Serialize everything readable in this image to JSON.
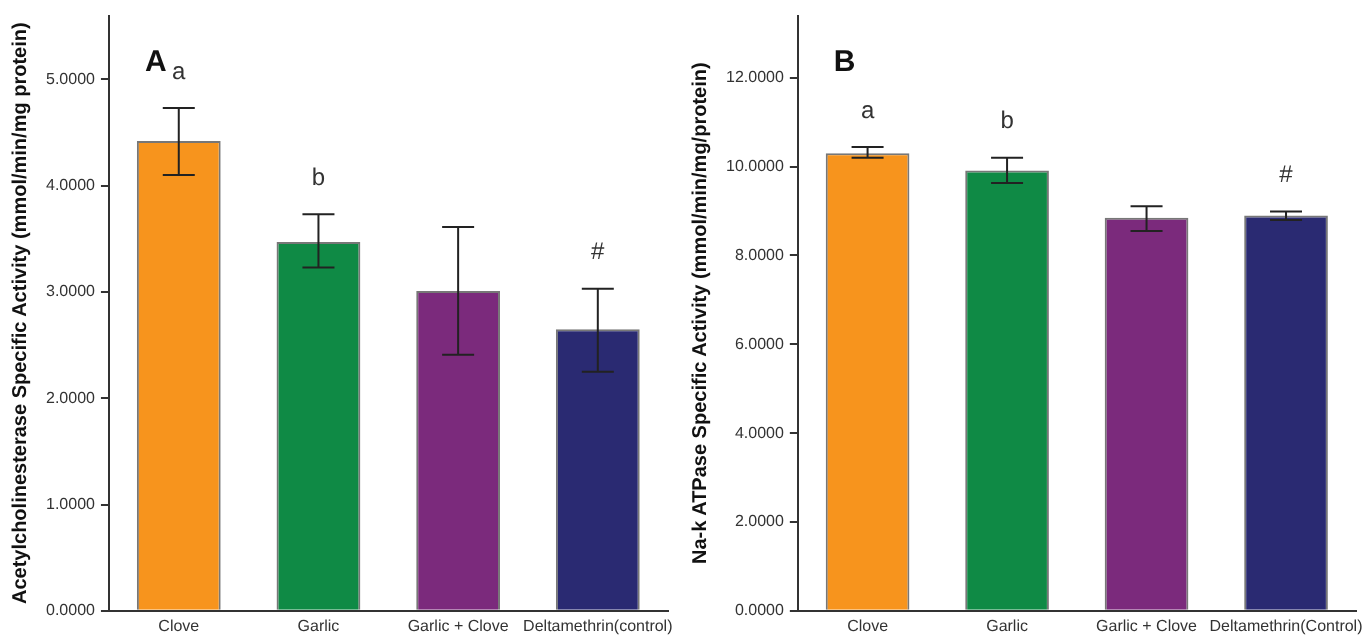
{
  "chart_data": [
    {
      "type": "bar",
      "ylabel": "Acetylcholinesterase Specific Activity (mmol/min/mg protein)",
      "categories": [
        "Clove",
        "Garlic",
        "Garlic + Clove",
        "Deltamethrin(control)"
      ],
      "values": [
        4.42,
        3.47,
        3.01,
        2.65
      ],
      "colors": [
        "#f7941d",
        "#0f8a45",
        "#7b2a7c",
        "#2a2a72"
      ],
      "errors": [
        [
          4.1,
          4.73
        ],
        [
          3.23,
          3.73
        ],
        [
          2.41,
          3.61
        ],
        [
          2.25,
          3.03
        ]
      ],
      "ylim": [
        0,
        5.6
      ],
      "yticks": [
        {
          "value": 0,
          "label": "0.0000"
        },
        {
          "value": 1,
          "label": "1.0000"
        },
        {
          "value": 2,
          "label": "2.0000"
        },
        {
          "value": 3,
          "label": "3.0000"
        },
        {
          "value": 4,
          "label": "4.0000"
        },
        {
          "value": 5,
          "label": "5.0000"
        }
      ],
      "grid": false,
      "annotations": [
        "A",
        "a",
        "b",
        "#"
      ]
    },
    {
      "type": "bar",
      "ylabel": "Na-k ATPase Specific Activity (mmol/min/mg/protein)",
      "categories": [
        "Clove",
        "Garlic",
        "Garlic + Clove",
        "Deltamethrin(Control)"
      ],
      "values": [
        10.3,
        9.91,
        8.85,
        8.9
      ],
      "colors": [
        "#f7941d",
        "#0f8a45",
        "#7b2a7c",
        "#2a2a72"
      ],
      "errors": [
        [
          10.2,
          10.44
        ],
        [
          9.63,
          10.2
        ],
        [
          8.55,
          9.11
        ],
        [
          8.8,
          8.99
        ]
      ],
      "ylim": [
        0,
        13.4
      ],
      "yticks": [
        {
          "value": 0,
          "label": "0.0000"
        },
        {
          "value": 2,
          "label": "2.0000"
        },
        {
          "value": 4,
          "label": "4.0000"
        },
        {
          "value": 6,
          "label": "6.0000"
        },
        {
          "value": 8,
          "label": "8.0000"
        },
        {
          "value": 10,
          "label": "10.0000"
        },
        {
          "value": 12,
          "label": "12.0000"
        }
      ],
      "grid": false,
      "annotations": [
        "B",
        "a",
        "b",
        "#"
      ]
    }
  ]
}
